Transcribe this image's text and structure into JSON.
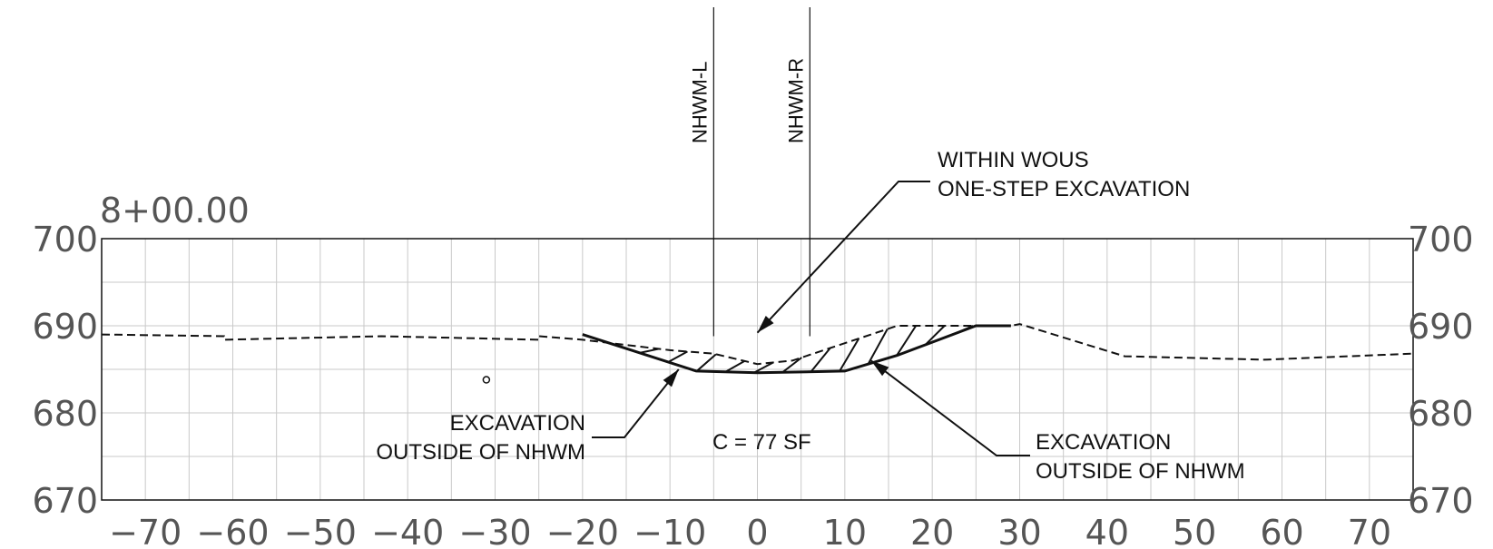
{
  "station": "8+00.00",
  "x_axis": {
    "min": -75,
    "max": 75,
    "ticks": [
      -70,
      -60,
      -50,
      -40,
      -30,
      -20,
      -10,
      0,
      10,
      20,
      30,
      40,
      50,
      60,
      70
    ],
    "labels": [
      "−70",
      "−60",
      "−50",
      "−40",
      "−30",
      "−20",
      "−10",
      "0",
      "10",
      "20",
      "30",
      "40",
      "50",
      "60",
      "70"
    ]
  },
  "y_axis": {
    "min": 670,
    "max": 700,
    "ticks": [
      670,
      680,
      690,
      700
    ],
    "labels": [
      "670",
      "680",
      "690",
      "700"
    ]
  },
  "grid": {
    "x_step": 5,
    "y_step": 5
  },
  "existing_ground": [
    [
      -75,
      689.0
    ],
    [
      -61,
      688.8
    ],
    [
      -61,
      688.4
    ],
    [
      -43,
      688.8
    ],
    [
      -25,
      688.4
    ],
    [
      -25,
      688.8
    ],
    [
      -20,
      688.4
    ],
    [
      -10,
      687.2
    ],
    [
      -5,
      686.8
    ],
    [
      0,
      685.6
    ],
    [
      4,
      686.0
    ],
    [
      10,
      688.0
    ],
    [
      16,
      690.0
    ],
    [
      29,
      690.0
    ],
    [
      30,
      690.2
    ],
    [
      42,
      686.5
    ],
    [
      58,
      686.1
    ],
    [
      75,
      686.8
    ]
  ],
  "proposed_section": [
    [
      -20,
      689.0
    ],
    [
      -7,
      684.8
    ],
    [
      0,
      684.6
    ],
    [
      10,
      684.8
    ],
    [
      16,
      686.6
    ],
    [
      25,
      690.0
    ],
    [
      29,
      690.0
    ]
  ],
  "hatch_count": 14,
  "nhwm": [
    {
      "label": "NHWM-L",
      "x": -5
    },
    {
      "label": "NHWM-R",
      "x": 6
    }
  ],
  "point_marker": {
    "x": -31,
    "y": 683.8
  },
  "callouts": {
    "wous": {
      "lines": [
        "WITHIN WOUS",
        "ONE-STEP EXCAVATION"
      ],
      "target": [
        0,
        689.2
      ]
    },
    "left": {
      "lines": [
        "EXCAVATION",
        "OUTSIDE OF NHWM"
      ],
      "target": [
        -9,
        685.0
      ]
    },
    "right": {
      "lines": [
        "EXCAVATION",
        "OUTSIDE OF NHWM"
      ],
      "target": [
        13,
        686.0
      ]
    }
  },
  "area_label": "C = 77 SF"
}
